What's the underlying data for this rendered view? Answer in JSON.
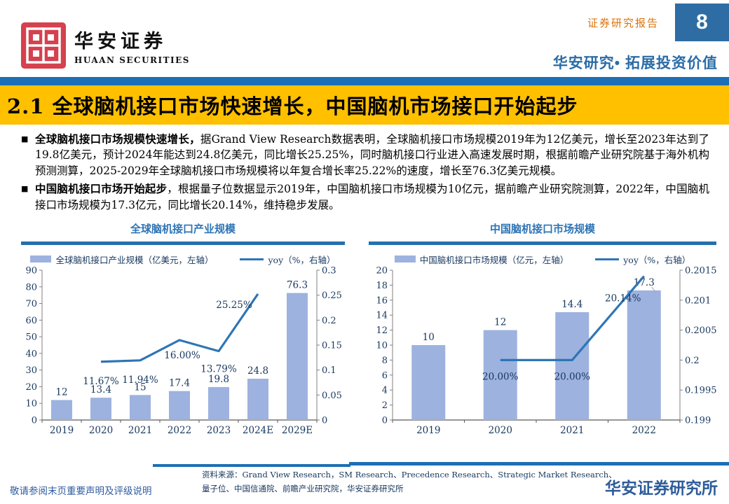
{
  "header": {
    "brand_cn": "华安证券",
    "brand_en": "HUAAN SECURITIES",
    "report_label": "证券研究报告",
    "page_number": "8",
    "slogan": "华安研究• 拓展投资价值"
  },
  "title_bar": {
    "text": "2.1 全球脑机接口市场快速增长，中国脑机市场接口开始起步"
  },
  "bullets": [
    {
      "lead": "全球脑机接口市场规模快速增长，",
      "rest": "据Grand View Research数据表明，全球脑机接口市场规模2019年为12亿美元，增长至2023年达到了19.8亿美元，预计2024年能达到24.8亿美元，同比增长25.25%，同时脑机接口行业进入高速发展时期，根据前瞻产业研究院基于海外机构预测测算，2025-2029年全球脑机接口市场规模将以年复合增长率25.22%的速度，增长至76.3亿美元规模。"
    },
    {
      "lead": "中国脑机接口市场开始起步",
      "rest": "，根据量子位数据显示2019年，中国脑机接口市场规模为10亿元，据前瞻产业研究院测算，2022年，中国脑机接口市场规模为17.3亿元，同比增长20.14%，维持稳步发展。"
    }
  ],
  "chart_data": [
    {
      "type": "bar-line-combo",
      "title": "全球脑机接口产业规模",
      "categories": [
        "2019",
        "2020",
        "2021",
        "2022",
        "2023",
        "2024E",
        "2029E"
      ],
      "bar_series": {
        "name": "全球脑机接口产业规模（亿美元，左轴）",
        "values": [
          12,
          13.4,
          15,
          17.4,
          19.8,
          24.8,
          76.3
        ],
        "labels": [
          "12",
          "13.4",
          "15",
          "17.4",
          "19.8",
          "24.8",
          "76.3"
        ]
      },
      "line_series": {
        "name": "yoy（%，右轴）",
        "values": [
          null,
          0.1167,
          0.1194,
          0.16,
          0.1379,
          0.2525,
          null
        ],
        "labels": [
          "",
          "11.67%",
          "11.94%",
          "16.00%",
          "13.79%",
          "25.25%",
          ""
        ]
      },
      "left_axis": {
        "min": 0,
        "max": 90,
        "tick_values": [
          0,
          10,
          20,
          30,
          40,
          50,
          60,
          70,
          80,
          90
        ],
        "tick_labels": [
          "0",
          "10",
          "20",
          "30",
          "40",
          "50",
          "60",
          "70",
          "80",
          "90"
        ]
      },
      "right_axis": {
        "min": 0,
        "max": 0.3,
        "tick_values": [
          0,
          0.05,
          0.1,
          0.15,
          0.2,
          0.25,
          0.3
        ],
        "tick_labels": [
          "0",
          "0.05",
          "0.1",
          "0.15",
          "0.2",
          "0.25",
          "0.3"
        ]
      },
      "grid": false,
      "legend_position": "top"
    },
    {
      "type": "bar-line-combo",
      "title": "中国脑机接口市场规模",
      "categories": [
        "2019",
        "2020",
        "2021",
        "2022"
      ],
      "bar_series": {
        "name": "中国脑机接口市场规模（亿元，左轴）",
        "values": [
          10,
          12,
          14.4,
          17.3
        ],
        "labels": [
          "10",
          "12",
          "14.4",
          "17.3"
        ]
      },
      "line_series": {
        "name": "yoy（%，右轴）",
        "values": [
          null,
          0.2,
          0.2,
          0.2014
        ],
        "labels": [
          "",
          "20.00%",
          "20.00%",
          "20.14%"
        ]
      },
      "left_axis": {
        "min": 0,
        "max": 20,
        "tick_values": [
          0,
          2,
          4,
          6,
          8,
          10,
          12,
          14,
          16,
          18,
          20
        ],
        "tick_labels": [
          "0",
          "2",
          "4",
          "6",
          "8",
          "10",
          "12",
          "14",
          "16",
          "18",
          "20"
        ]
      },
      "right_axis": {
        "min": 0.199,
        "max": 0.2015,
        "tick_values": [
          0.199,
          0.1995,
          0.2,
          0.2005,
          0.201,
          0.2015
        ],
        "tick_labels": [
          "0.199",
          "0.1995",
          "0.2",
          "0.2005",
          "0.201",
          "0.2015"
        ]
      },
      "grid": false,
      "legend_position": "top"
    }
  ],
  "footer": {
    "disclaimer": "敬请参阅末页重要声明及评级说明",
    "source_line1": "资料来源：Grand View Research，SM Research、Precedence Research、Strategic Market Research、",
    "source_line2": "量子位、中国信通院、前瞻产业研究院，华安证券研究所",
    "institute": "华安证券研究所"
  },
  "colors": {
    "band_blue": "#1D6FB5",
    "title_bg": "#FFC000",
    "accent_orange": "#D9730D",
    "accent_blue": "#2B6CA6",
    "bar_fill": "#9DB2DF",
    "line_stroke": "#2E75B6",
    "label_navy": "#17375E"
  }
}
